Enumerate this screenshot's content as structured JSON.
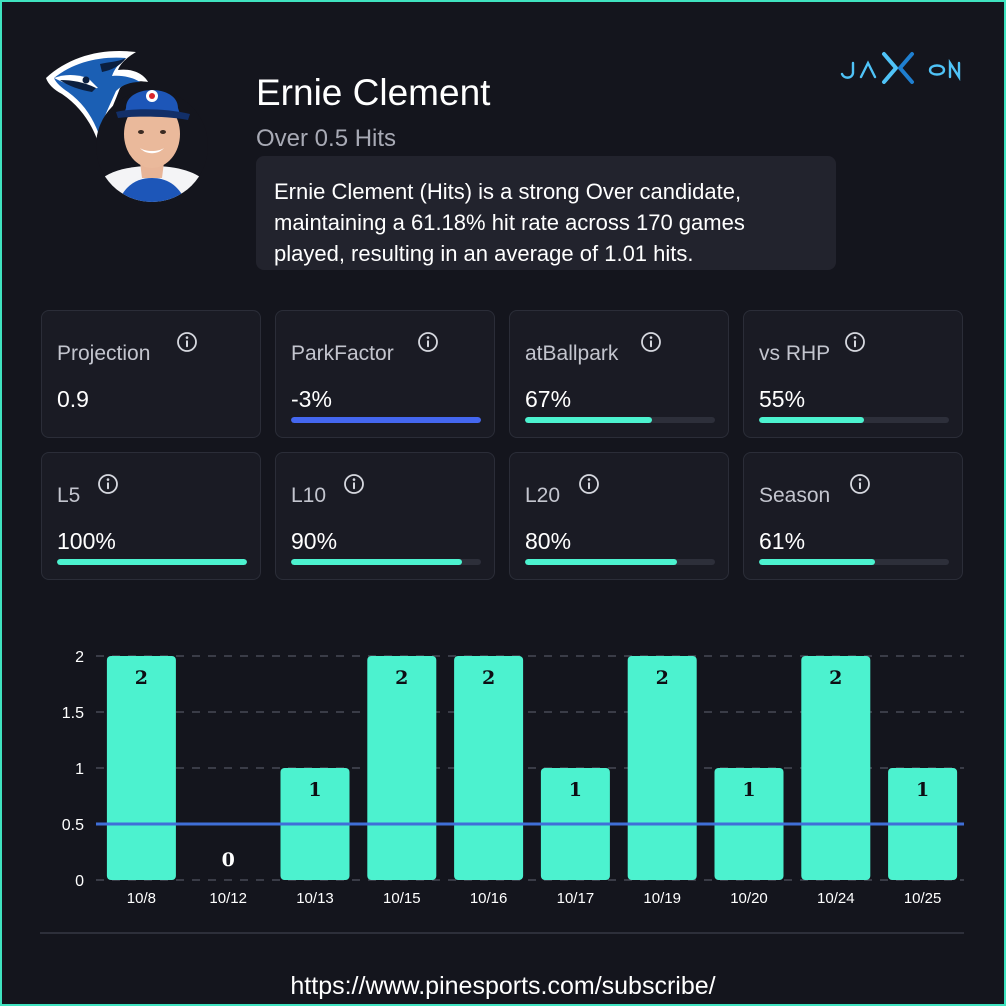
{
  "brand": {
    "logo_text": "JAXON",
    "accent_color": "#4fc3f7"
  },
  "team_logo_icon": "blue-jay-head-icon",
  "player": {
    "name": "Ernie Clement",
    "prop": "Over 0.5 Hits",
    "summary": "Ernie Clement (Hits) is a strong Over candidate, maintaining a 61.18% hit rate across 170 games played, resulting in an average of 1.01 hits.",
    "headshot_icon": "player-headshot"
  },
  "stats": [
    {
      "label": "Projection",
      "value": "0.9",
      "bar": null
    },
    {
      "label": "ParkFactor",
      "value": "-3%",
      "bar": 1.0,
      "bar_color": "#4467f0"
    },
    {
      "label": "atBallpark",
      "value": "67%",
      "bar": 0.67,
      "bar_color": "#4cf2cf"
    },
    {
      "label": "vs RHP",
      "value": "55%",
      "bar": 0.55,
      "bar_color": "#4cf2cf"
    },
    {
      "label": "L5",
      "value": "100%",
      "bar": 1.0,
      "bar_color": "#4cf2cf"
    },
    {
      "label": "L10",
      "value": "90%",
      "bar": 0.9,
      "bar_color": "#4cf2cf"
    },
    {
      "label": "L20",
      "value": "80%",
      "bar": 0.8,
      "bar_color": "#4cf2cf"
    },
    {
      "label": "Season",
      "value": "61%",
      "bar": 0.61,
      "bar_color": "#4cf2cf"
    }
  ],
  "chart_data": {
    "type": "bar",
    "categories": [
      "10/8",
      "10/12",
      "10/13",
      "10/15",
      "10/16",
      "10/17",
      "10/19",
      "10/20",
      "10/24",
      "10/25"
    ],
    "values": [
      2,
      0,
      1,
      2,
      2,
      1,
      2,
      1,
      2,
      1
    ],
    "ylim": [
      0,
      2
    ],
    "yticks": [
      "0",
      "0.5",
      "1",
      "1.5",
      "2"
    ],
    "yticks_values": [
      0,
      0.5,
      1,
      1.5,
      2
    ],
    "reference_line": 0.5,
    "bar_color": "#4cf2cf",
    "line_color": "#3f6fd8",
    "grid": true,
    "title": "",
    "xlabel": "",
    "ylabel": ""
  },
  "footer": {
    "url": "https://www.pinesports.com/subscribe/"
  }
}
